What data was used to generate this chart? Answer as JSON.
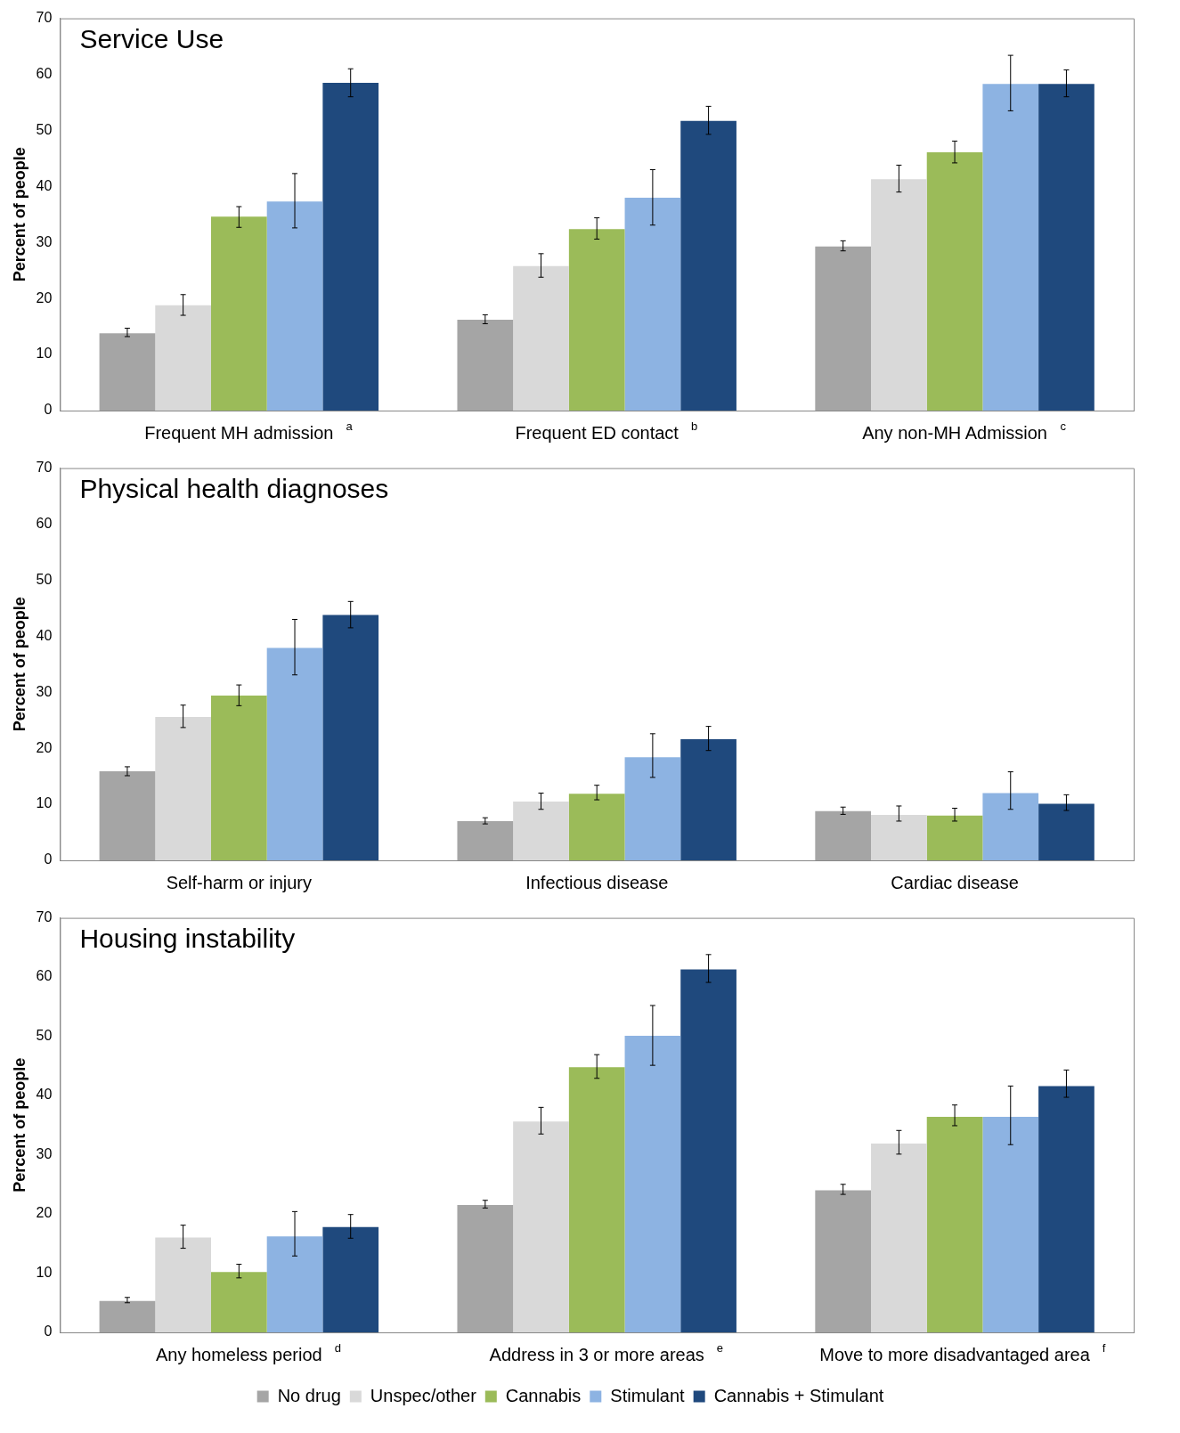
{
  "chart_data": [
    {
      "type": "bar",
      "title": "Service Use",
      "ylabel": "Percent of people",
      "categories": [
        "Frequent MH admission $^{a}$",
        "Frequent ED contact $^{b}$",
        "Any non-MH Admission $^{c}$"
      ],
      "ylim": [
        0,
        70
      ],
      "yticks": [
        0,
        10,
        20,
        30,
        40,
        50,
        60,
        70
      ],
      "grid": false,
      "legend": false,
      "series": [
        {
          "color": "#a5a5a5",
          "values": [
            13.8,
            16.2,
            29.3
          ],
          "errors": [
            [
              13.2,
              14.7
            ],
            [
              15.5,
              17.1
            ],
            [
              28.5,
              30.3
            ]
          ]
        },
        {
          "color": "#d9d9d9",
          "values": [
            18.8,
            25.8,
            41.3
          ],
          "errors": [
            [
              17,
              20.7
            ],
            [
              23.8,
              28
            ],
            [
              39,
              43.8
            ]
          ]
        },
        {
          "color": "#9bbb59",
          "values": [
            34.6,
            32.4,
            46.1
          ],
          "errors": [
            [
              32.7,
              36.4
            ],
            [
              30.6,
              34.4
            ],
            [
              44.2,
              48.1
            ]
          ]
        },
        {
          "color": "#8db3e2",
          "values": [
            37.3,
            38,
            58.3
          ],
          "errors": [
            [
              32.6,
              42.3
            ],
            [
              33.1,
              43
            ],
            [
              53.5,
              63.4
            ]
          ]
        },
        {
          "color": "#1f497d",
          "values": [
            58.5,
            51.7,
            58.3
          ],
          "errors": [
            [
              56,
              61
            ],
            [
              49.3,
              54.3
            ],
            [
              56,
              60.8
            ]
          ]
        }
      ]
    },
    {
      "type": "bar",
      "title": "Physical health diagnoses",
      "ylabel": "Percent of people",
      "categories": [
        "Self-harm or injury",
        "Infectious disease",
        "Cardiac disease"
      ],
      "ylim": [
        0,
        70
      ],
      "yticks": [
        0,
        10,
        20,
        30,
        40,
        50,
        60,
        70
      ],
      "grid": false,
      "legend": false,
      "series": [
        {
          "color": "#a5a5a5",
          "values": [
            15.9,
            7.0,
            8.8
          ],
          "errors": [
            [
              15.1,
              16.7
            ],
            [
              6.5,
              7.6
            ],
            [
              8.2,
              9.5
            ]
          ]
        },
        {
          "color": "#d9d9d9",
          "values": [
            25.6,
            10.5,
            8.1
          ],
          "errors": [
            [
              23.7,
              27.7
            ],
            [
              9.1,
              12
            ],
            [
              7,
              9.7
            ]
          ]
        },
        {
          "color": "#9bbb59",
          "values": [
            29.4,
            11.9,
            8.0
          ],
          "errors": [
            [
              27.6,
              31.3
            ],
            [
              10.8,
              13.4
            ],
            [
              7,
              9.3
            ]
          ]
        },
        {
          "color": "#8db3e2",
          "values": [
            37.9,
            18.4,
            12.0
          ],
          "errors": [
            [
              33.1,
              43
            ],
            [
              14.8,
              22.6
            ],
            [
              9.1,
              15.8
            ]
          ]
        },
        {
          "color": "#1f497d",
          "values": [
            43.8,
            21.6,
            10.1
          ],
          "errors": [
            [
              41.5,
              46.2
            ],
            [
              19.6,
              23.9
            ],
            [
              8.9,
              11.7
            ]
          ]
        }
      ]
    },
    {
      "type": "bar",
      "title": "Housing instability",
      "ylabel": "Percent of people",
      "categories": [
        "Any homeless period $^{d}$",
        "Address in 3 or more areas $^{e}$",
        "Move to more disadvantaged area $^{f}$"
      ],
      "ylim": [
        0,
        70
      ],
      "yticks": [
        0,
        10,
        20,
        30,
        40,
        50,
        60,
        70
      ],
      "grid": false,
      "legend": "bottom",
      "series": [
        {
          "name": "No drug",
          "color": "#a5a5a5",
          "values": [
            5.3,
            21.5,
            24.0
          ],
          "errors": [
            [
              5.0,
              5.9
            ],
            [
              21,
              22.3
            ],
            [
              23.3,
              25
            ]
          ]
        },
        {
          "name": "Unspec/other",
          "color": "#d9d9d9",
          "values": [
            16.0,
            35.6,
            31.9
          ],
          "errors": [
            [
              14.2,
              18.1
            ],
            [
              33.5,
              38
            ],
            [
              30.1,
              34.1
            ]
          ]
        },
        {
          "name": "Cannabis",
          "color": "#9bbb59",
          "values": [
            10.2,
            44.8,
            36.4
          ],
          "errors": [
            [
              9.2,
              11.5
            ],
            [
              42.9,
              46.9
            ],
            [
              34.9,
              38.4
            ]
          ]
        },
        {
          "name": "Stimulant",
          "color": "#8db3e2",
          "values": [
            16.2,
            50.1,
            36.4
          ],
          "errors": [
            [
              12.9,
              20.4
            ],
            [
              45.1,
              55.2
            ],
            [
              31.7,
              41.6
            ]
          ]
        },
        {
          "name": "Cannabis + Stimulant",
          "color": "#1f497d",
          "values": [
            17.8,
            61.3,
            41.6
          ],
          "errors": [
            [
              15.9,
              19.9
            ],
            [
              59.1,
              63.8
            ],
            [
              39.7,
              44.3
            ]
          ]
        }
      ]
    }
  ]
}
